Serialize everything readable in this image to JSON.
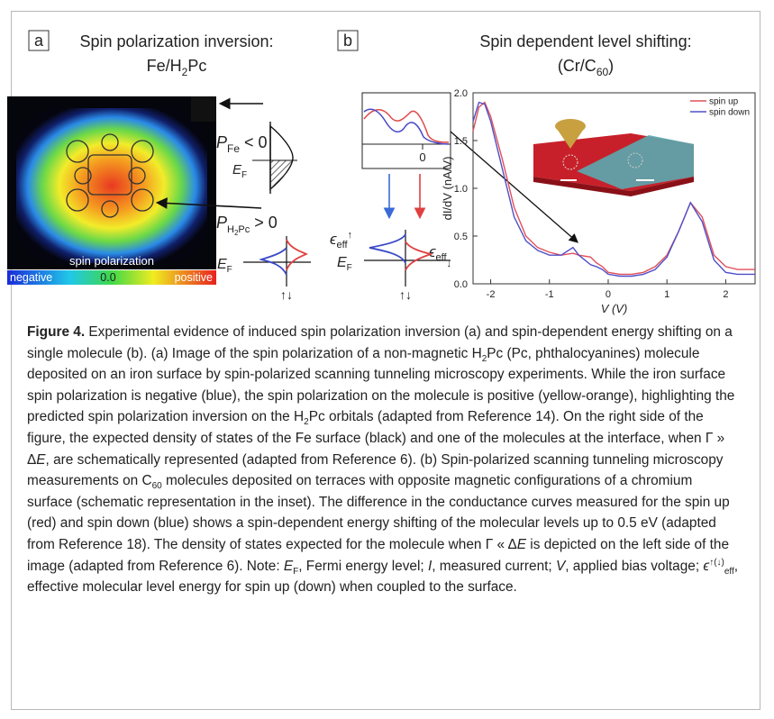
{
  "panel_a": {
    "label": "a",
    "title": [
      "Spin polarization inversion:",
      "Fe/H",
      "2",
      "Pc"
    ],
    "image_caption": "spin polarization",
    "colorbar": [
      "negative",
      "0.0",
      "positive"
    ],
    "p_fe": [
      "P",
      "Fe",
      " < 0"
    ],
    "e_f_1": [
      "E",
      "F"
    ],
    "p_h2pc": [
      "P",
      "H",
      "2",
      "Pc",
      " > 0"
    ],
    "e_f_2": [
      "E",
      "F"
    ],
    "spin_arrows": "↑↓"
  },
  "panel_b": {
    "label": "b",
    "title": [
      "Spin dependent level shifting:",
      "(Cr/C",
      "60",
      ")"
    ],
    "inset_tick": "0",
    "eps_up": [
      "ϵ",
      "eff",
      "↑"
    ],
    "e_f": [
      "E",
      "F"
    ],
    "eps_down": [
      "ϵ",
      "eff",
      "↓"
    ],
    "spin_arrows": "↑↓",
    "chart": {
      "type": "line",
      "y_label": "dI/dV (nA/V)",
      "x_label": "V (V)",
      "x": [
        -2.3,
        -2.2,
        -2.1,
        -2.0,
        -1.8,
        -1.6,
        -1.4,
        -1.2,
        -1.0,
        -0.8,
        -0.6,
        -0.5,
        -0.3,
        -0.2,
        -0.1,
        0,
        0.2,
        0.4,
        0.6,
        0.8,
        1.0,
        1.2,
        1.4,
        1.6,
        1.8,
        2.0,
        2.2,
        2.5
      ],
      "series": [
        {
          "name": "spin up",
          "color": "#e0505a",
          "values": [
            1.6,
            1.85,
            1.9,
            1.75,
            1.3,
            0.8,
            0.5,
            0.38,
            0.33,
            0.3,
            0.32,
            0.3,
            0.28,
            0.22,
            0.18,
            0.12,
            0.1,
            0.1,
            0.12,
            0.18,
            0.3,
            0.55,
            0.85,
            0.7,
            0.3,
            0.18,
            0.15,
            0.15
          ]
        },
        {
          "name": "spin down",
          "color": "#5050c8",
          "values": [
            1.7,
            1.9,
            1.88,
            1.7,
            1.2,
            0.7,
            0.45,
            0.35,
            0.3,
            0.3,
            0.38,
            0.3,
            0.2,
            0.18,
            0.15,
            0.1,
            0.08,
            0.08,
            0.1,
            0.15,
            0.28,
            0.55,
            0.85,
            0.65,
            0.25,
            0.12,
            0.1,
            0.1
          ]
        }
      ],
      "xlim": [
        -2.3,
        2.5
      ],
      "ylim": [
        0,
        2.0
      ],
      "xticks": [
        -2,
        -1,
        0,
        1,
        2
      ],
      "yticks": [
        {
          "value": 0,
          "label": "0.0"
        },
        {
          "value": 0.5,
          "label": "0.5"
        },
        {
          "value": 1.0,
          "label": "1.0"
        },
        {
          "value": 1.5,
          "label": "1.5"
        },
        {
          "value": 2.0,
          "label": "2.0"
        }
      ]
    }
  },
  "caption": [
    "Figure 4.",
    " Experimental evidence of induced spin polarization inversion (a) and spin-dependent energy shifting on a single molecule (b). (a) Image of the spin polarization of a non-magnetic H",
    "2",
    "Pc (Pc, phthalocyanines) molecule deposited on an iron surface by spin-polarized scanning tunneling microscopy experiments. While the iron surface spin polarization is negative (blue), the spin polarization on the molecule is positive (yellow-orange), highlighting the predicted spin polarization inversion on the H",
    "2",
    "Pc orbitals (adapted from Reference 14). On the right side of the figure, the expected density of states of the Fe surface (black) and one of the molecules at the interface, when Γ » Δ",
    "E",
    ", are schematically represented (adapted from Reference 6). (b) Spin-polarized scanning tunneling microscopy measurements on C",
    "60",
    " molecules deposited on terraces with opposite magnetic configurations of a chromium surface (schematic representation in the inset). The difference in the conductance curves measured for the spin up (red) and spin down (blue) shows a spin-dependent energy shifting of the molecular levels up to 0.5 eV (adapted from Reference 18). The density of states expected for the molecule when Γ « Δ",
    "E",
    " is depicted on the left side of the image (adapted from Reference 6). Note: ",
    "E",
    "F",
    ", Fermi energy level; ",
    "I",
    ", measured current; ",
    "V",
    ", applied bias voltage; ",
    "ϵ",
    "↑(↓)",
    "eff",
    ", effective molecular level energy for spin up (down) when coupled to the surface."
  ]
}
